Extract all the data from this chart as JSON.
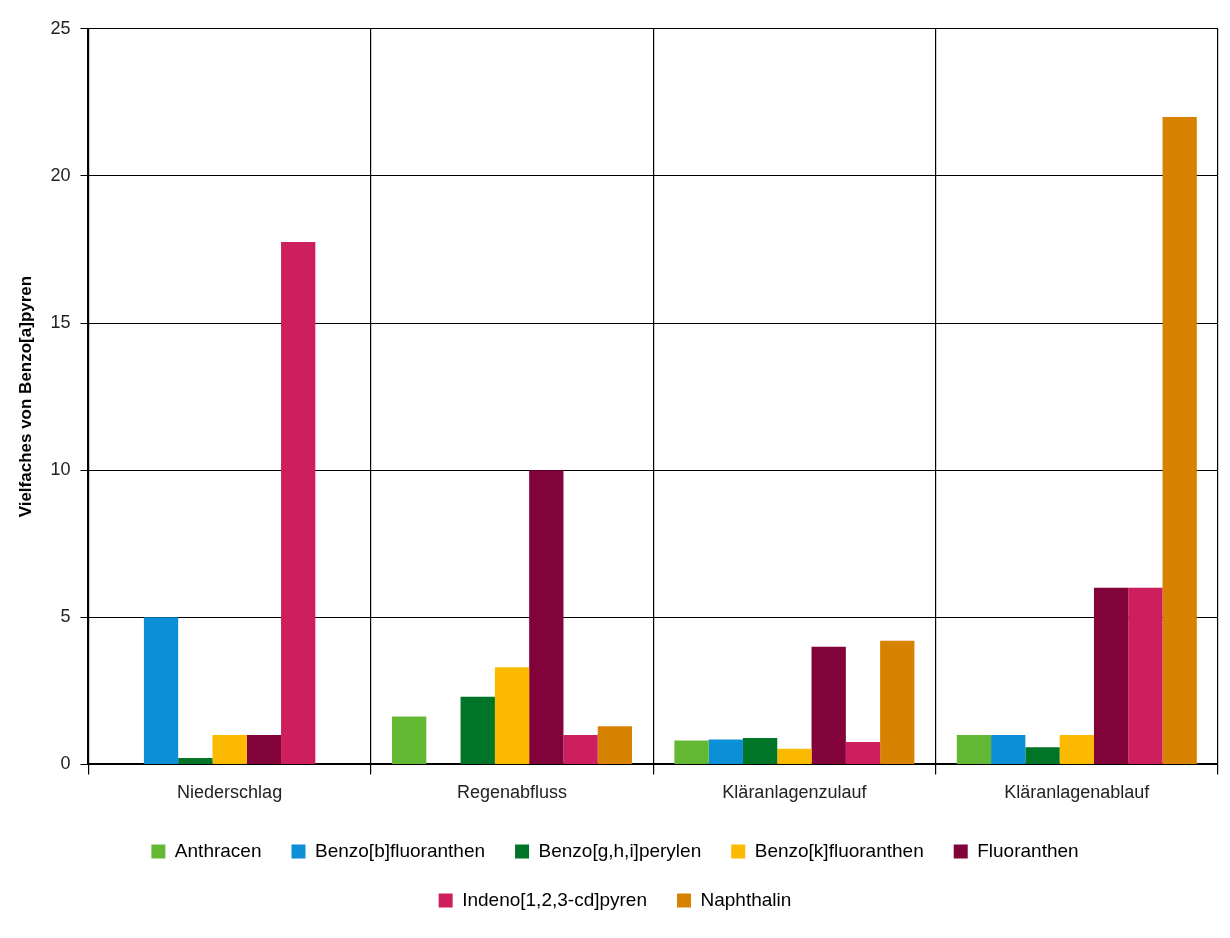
{
  "chart_data": {
    "type": "bar",
    "ylabel": "Vielfaches von Benzo[a]pyren",
    "categories": [
      "Niederschlag",
      "Regenabfluss",
      "Kläranlagenzulauf",
      "Kläranlagenablauf"
    ],
    "series": [
      {
        "name": "Anthracen",
        "color": "#62b832",
        "values": [
          null,
          1.63,
          0.81,
          1
        ]
      },
      {
        "name": "Benzo[b]fluoranthen",
        "color": "#0b8fd6",
        "values": [
          5,
          null,
          0.85,
          1
        ]
      },
      {
        "name": "Benzo[g,h,i]perylen",
        "color": "#007427",
        "values": [
          0.22,
          2.3,
          0.9,
          0.58
        ]
      },
      {
        "name": "Benzo[k]fluoranthen",
        "color": "#fbba00",
        "values": [
          1,
          3.3,
          0.53,
          1
        ]
      },
      {
        "name": "Fluoranthen",
        "color": "#82023a",
        "values": [
          1,
          10,
          4,
          6
        ]
      },
      {
        "name": "Indeno[1,2,3-cd]pyren",
        "color": "#cd1f5d",
        "values": [
          17.75,
          1,
          0.76,
          6
        ]
      },
      {
        "name": "Naphthalin",
        "color": "#d78200",
        "values": [
          null,
          1.3,
          4.2,
          22
        ]
      }
    ],
    "ylim": [
      0,
      25
    ],
    "yticks": [
      0,
      5,
      10,
      15,
      20,
      25
    ],
    "grid": true,
    "legend": "bottom"
  }
}
